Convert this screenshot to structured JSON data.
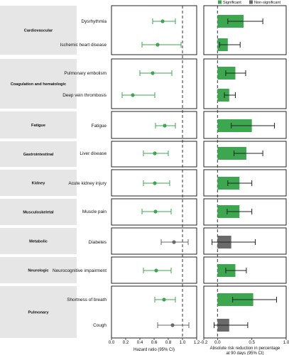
{
  "chart_data": [
    {
      "type": "scatter",
      "title": "",
      "xlabel": "Hazard ratio (95% CI)",
      "xlim": [
        0,
        1.2
      ],
      "xticks": [
        "0.0",
        "0.2",
        "0.4",
        "0.6",
        "0.8",
        "1.0",
        "1.2"
      ],
      "reference_line": 1.0,
      "categories": [
        "Cardiovascular",
        "Coagulation and hematologic",
        "Fatigue",
        "Gastrointestinal",
        "Kidney",
        "Musculoskeletal",
        "Metabolic",
        "Neurologic",
        "Pulmonary"
      ],
      "outcomes": [
        {
          "category": 0,
          "label": "Dysrhythmia",
          "hr": 0.72,
          "lo": 0.58,
          "hi": 0.9,
          "significant": true
        },
        {
          "category": 0,
          "label": "Ischemic heart disease",
          "hr": 0.65,
          "lo": 0.43,
          "hi": 0.98,
          "significant": true
        },
        {
          "category": 1,
          "label": "Pulmonary embolism",
          "hr": 0.58,
          "lo": 0.4,
          "hi": 0.85,
          "significant": true
        },
        {
          "category": 1,
          "label": "Deep vein thrombosis",
          "hr": 0.3,
          "lo": 0.15,
          "hi": 0.61,
          "significant": true
        },
        {
          "category": 2,
          "label": "Fatigue",
          "hr": 0.75,
          "lo": 0.62,
          "hi": 0.9,
          "significant": true
        },
        {
          "category": 3,
          "label": "Liver disease",
          "hr": 0.61,
          "lo": 0.45,
          "hi": 0.8,
          "significant": true
        },
        {
          "category": 4,
          "label": "Acute kidney injury",
          "hr": 0.61,
          "lo": 0.45,
          "hi": 0.82,
          "significant": true
        },
        {
          "category": 5,
          "label": "Muscle pain",
          "hr": 0.62,
          "lo": 0.43,
          "hi": 0.84,
          "significant": true
        },
        {
          "category": 6,
          "label": "Diabetes",
          "hr": 0.88,
          "lo": 0.7,
          "hi": 1.08,
          "significant": false
        },
        {
          "category": 7,
          "label": "Neurocognitive impairment",
          "hr": 0.63,
          "lo": 0.45,
          "hi": 0.84,
          "significant": true
        },
        {
          "category": 8,
          "label": "Shortness of breath",
          "hr": 0.74,
          "lo": 0.61,
          "hi": 0.9,
          "significant": true
        },
        {
          "category": 8,
          "label": "Cough",
          "hr": 0.86,
          "lo": 0.65,
          "hi": 1.09,
          "significant": false
        }
      ]
    },
    {
      "type": "bar",
      "title": "",
      "xlabel": "Absolute risk reduction in percentage\nat 90 days (95% CI)",
      "xlim": [
        -0.2,
        1.0
      ],
      "xticks": [
        "-0.2",
        "0.0",
        "0.5",
        "1.0"
      ],
      "reference_line": 0.0,
      "legend": {
        "position": "top-right",
        "items": [
          {
            "label": "Significant",
            "color": "#3ca74f"
          },
          {
            "label": "Non-significant",
            "color": "#6a6a6a"
          }
        ]
      },
      "values": [
        {
          "label": "Dysrhythmia",
          "arr": 0.38,
          "lo": 0.15,
          "hi": 0.66,
          "significant": true
        },
        {
          "label": "Ischemic heart disease",
          "arr": 0.15,
          "lo": 0.03,
          "hi": 0.33,
          "significant": true
        },
        {
          "label": "Pulmonary embolism",
          "arr": 0.26,
          "lo": 0.12,
          "hi": 0.41,
          "significant": true
        },
        {
          "label": "Deep vein thrombosis",
          "arr": 0.17,
          "lo": 0.1,
          "hi": 0.26,
          "significant": true
        },
        {
          "label": "Fatigue",
          "arr": 0.5,
          "lo": 0.2,
          "hi": 0.83,
          "significant": true
        },
        {
          "label": "Liver disease",
          "arr": 0.42,
          "lo": 0.24,
          "hi": 0.66,
          "significant": true
        },
        {
          "label": "Acute kidney injury",
          "arr": 0.32,
          "lo": 0.15,
          "hi": 0.5,
          "significant": true
        },
        {
          "label": "Muscle pain",
          "arr": 0.32,
          "lo": 0.14,
          "hi": 0.5,
          "significant": true
        },
        {
          "label": "Diabetes",
          "arr": 0.2,
          "lo": -0.08,
          "hi": 0.55,
          "significant": false
        },
        {
          "label": "Neurocognitive impairment",
          "arr": 0.26,
          "lo": 0.12,
          "hi": 0.42,
          "significant": true
        },
        {
          "label": "Shortness of breath",
          "arr": 0.52,
          "lo": 0.22,
          "hi": 0.86,
          "significant": true
        },
        {
          "label": "Cough",
          "arr": 0.17,
          "lo": -0.05,
          "hi": 0.44,
          "significant": false
        }
      ]
    }
  ],
  "colors": {
    "significant": "#3ca74f",
    "non_significant": "#6a6a6a",
    "category_bg": "#e6e6e6"
  }
}
